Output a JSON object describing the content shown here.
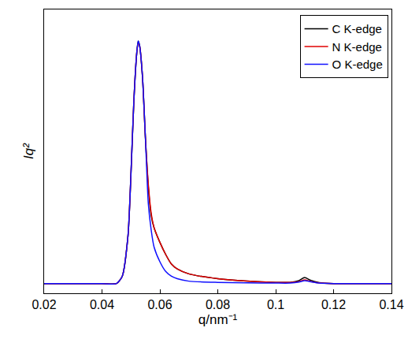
{
  "chart_data": {
    "type": "line",
    "x_label": "q/nm⁻¹",
    "y_label": "Iq²",
    "x": [
      0.02,
      0.03,
      0.04,
      0.045,
      0.047,
      0.049,
      0.05,
      0.051,
      0.052,
      0.0525,
      0.053,
      0.054,
      0.055,
      0.056,
      0.057,
      0.058,
      0.06,
      0.062,
      0.064,
      0.066,
      0.07,
      0.08,
      0.09,
      0.1,
      0.105,
      0.108,
      0.11,
      0.112,
      0.115,
      0.12,
      0.13,
      0.14
    ],
    "series": [
      {
        "name": "C K-edge",
        "color": "#000000",
        "values": [
          0,
          0,
          0,
          0,
          0.03,
          0.2,
          0.45,
          0.75,
          0.95,
          1.0,
          0.98,
          0.85,
          0.6,
          0.4,
          0.28,
          0.23,
          0.17,
          0.12,
          0.08,
          0.06,
          0.04,
          0.02,
          0.01,
          0.005,
          0.005,
          0.012,
          0.025,
          0.014,
          0.004,
          0,
          0,
          0
        ]
      },
      {
        "name": "N K-edge",
        "color": "#e00000",
        "values": [
          0,
          0,
          0,
          0,
          0.03,
          0.2,
          0.45,
          0.75,
          0.95,
          0.99,
          0.98,
          0.85,
          0.6,
          0.41,
          0.29,
          0.23,
          0.17,
          0.12,
          0.08,
          0.06,
          0.04,
          0.02,
          0.01,
          0.005,
          0.005,
          0.008,
          0.015,
          0.009,
          0.003,
          0,
          0,
          0
        ]
      },
      {
        "name": "O K-edge",
        "color": "#1010ff",
        "values": [
          0,
          0,
          0,
          0,
          0.03,
          0.2,
          0.45,
          0.75,
          0.95,
          1.0,
          0.98,
          0.85,
          0.6,
          0.33,
          0.22,
          0.15,
          0.09,
          0.05,
          0.03,
          0.02,
          0.01,
          0.005,
          0.003,
          0.002,
          0.002,
          0.006,
          0.012,
          0.008,
          0.002,
          0,
          0,
          0
        ]
      }
    ],
    "xlim": [
      0.02,
      0.14
    ],
    "xticks": [
      0.02,
      0.04,
      0.06,
      0.08,
      0.1,
      0.12,
      0.14
    ],
    "ylim": [
      -0.04,
      1.13
    ],
    "tick_labels": "x",
    "grid": false,
    "legend": "top right"
  }
}
